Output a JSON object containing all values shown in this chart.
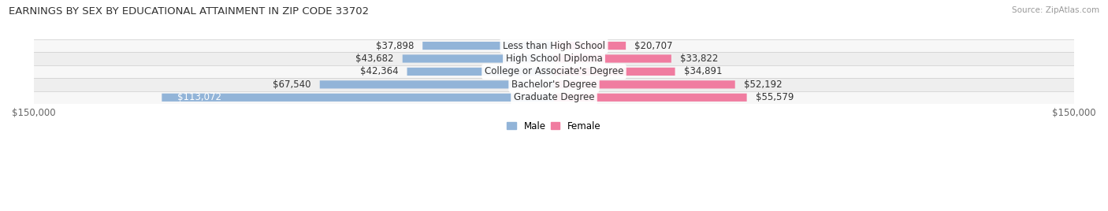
{
  "title": "EARNINGS BY SEX BY EDUCATIONAL ATTAINMENT IN ZIP CODE 33702",
  "source": "Source: ZipAtlas.com",
  "categories": [
    "Less than High School",
    "High School Diploma",
    "College or Associate's Degree",
    "Bachelor's Degree",
    "Graduate Degree"
  ],
  "male_values": [
    37898,
    43682,
    42364,
    67540,
    113072
  ],
  "female_values": [
    20707,
    33822,
    34891,
    52192,
    55579
  ],
  "male_color": "#92b4d8",
  "female_color": "#f07ca0",
  "row_bg_light": "#f7f7f7",
  "row_bg_dark": "#eeeeee",
  "xlim": 150000,
  "label_fontsize": 8.5,
  "title_fontsize": 9.5,
  "tick_label_color": "#666666",
  "value_label_color": "#333333",
  "category_label_color": "#333333"
}
